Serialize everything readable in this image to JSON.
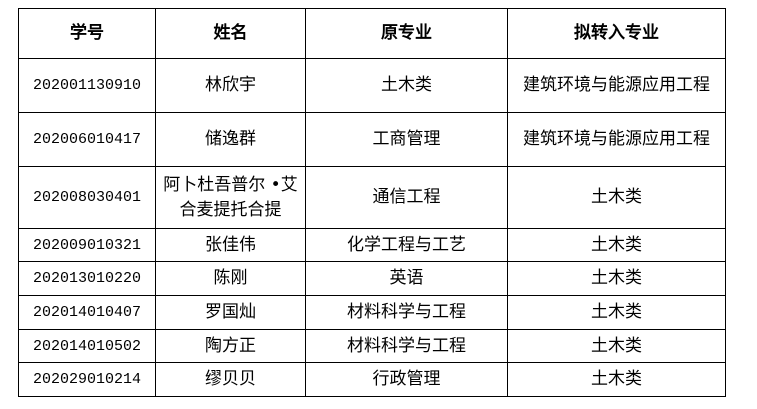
{
  "headers": [
    "学号",
    "姓名",
    "原专业",
    "拟转入专业"
  ],
  "rows": [
    {
      "id": "202001130910",
      "name": "林欣宇",
      "from": "土木类",
      "to": "建筑环境与能源应用工程"
    },
    {
      "id": "202006010417",
      "name": "储逸群",
      "from": "工商管理",
      "to": "建筑环境与能源应用工程"
    },
    {
      "id": "202008030401",
      "name": "阿卜杜吾普尔 •艾合麦提托合提",
      "from": "通信工程",
      "to": "土木类"
    },
    {
      "id": "202009010321",
      "name": "张佳伟",
      "from": "化学工程与工艺",
      "to": "土木类"
    },
    {
      "id": "202013010220",
      "name": "陈刚",
      "from": "英语",
      "to": "土木类"
    },
    {
      "id": "202014010407",
      "name": "罗国灿",
      "from": "材料科学与工程",
      "to": "土木类"
    },
    {
      "id": "202014010502",
      "name": "陶方正",
      "from": "材料科学与工程",
      "to": "土木类"
    },
    {
      "id": "202029010214",
      "name": "缪贝贝",
      "from": "行政管理",
      "to": "土木类"
    }
  ]
}
